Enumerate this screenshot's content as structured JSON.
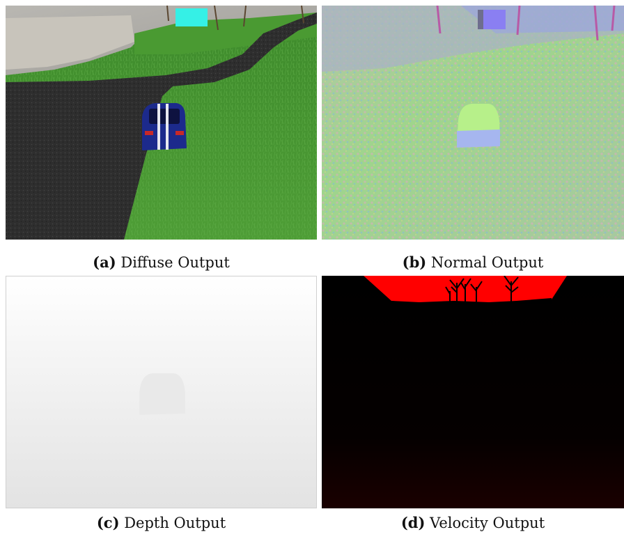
{
  "figure": {
    "panels": [
      {
        "id": "a",
        "tag": "(a)",
        "caption": "Diffuse Output"
      },
      {
        "id": "b",
        "tag": "(b)",
        "caption": "Normal Output"
      },
      {
        "id": "c",
        "tag": "(c)",
        "caption": "Depth Output"
      },
      {
        "id": "d",
        "tag": "(d)",
        "caption": "Velocity Output"
      }
    ]
  },
  "colors": {
    "grass": "#3f8f2a",
    "road": "#2b2b2b",
    "car_body": "#1c2a8c",
    "billboard": "#35f0e6",
    "normal_base": "#9ad68a",
    "normal_billboard": "#8a7ff2",
    "depth_top": "#ffffff",
    "depth_bottom": "#e2e2e2",
    "velocity_sky": "#ff0000",
    "velocity_ground": "#000000"
  }
}
